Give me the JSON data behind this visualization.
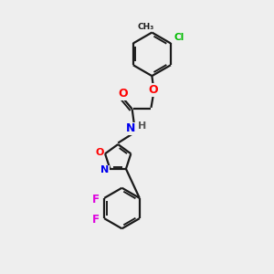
{
  "bg_color": "#eeeeee",
  "bond_color": "#1a1a1a",
  "atom_colors": {
    "O": "#ff0000",
    "N": "#0000ee",
    "Cl": "#00bb00",
    "F": "#dd00dd",
    "C": "#1a1a1a",
    "H": "#555555"
  },
  "lw": 1.6,
  "ring_r": 0.72,
  "iso_r": 0.52
}
